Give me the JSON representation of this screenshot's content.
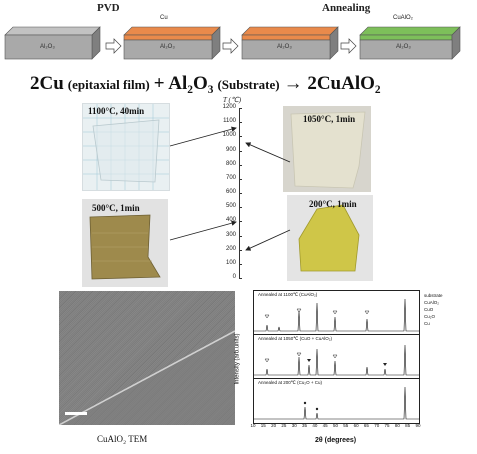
{
  "process": {
    "pvd_label": "PVD",
    "annealing_label": "Annealing",
    "boxes": [
      {
        "top_label": "",
        "body_label": "Al₂O₃",
        "top_color": "#9a9a9a"
      },
      {
        "top_label": "Cu",
        "body_label": "Al₂O₃",
        "top_color": "#e98a4b"
      },
      {
        "top_label": "",
        "body_label": "Al₂O₃",
        "top_color": "#e98a4b"
      },
      {
        "top_label": "CuAlO₂",
        "body_label": "Al₂O₃",
        "top_color": "#7dbf5a"
      }
    ]
  },
  "equation": {
    "part1": "2Cu",
    "part2": "(epitaxial film)",
    "part3": "+ Al₂O₃",
    "part4": "(Substrate)",
    "part5": "→ 2CuAlO₂"
  },
  "photos": {
    "p1": "1100°C, 40min",
    "p2": "1050°C, 1min",
    "p3": "500°C, 1min",
    "p4": "200°C, 1min"
  },
  "temp_axis": {
    "label": "T (℃)",
    "ticks": [
      "1200",
      "1100",
      "1000",
      "900",
      "800",
      "700",
      "600",
      "500",
      "400",
      "300",
      "200",
      "100",
      "0"
    ]
  },
  "tem": {
    "caption": "CuAlO₂ TEM"
  },
  "xrd": {
    "ylabel": "Intensity (arb.units)",
    "xlabel": "2θ (degrees)",
    "xticks": [
      "10",
      "15",
      "20",
      "25",
      "30",
      "35",
      "40",
      "45",
      "50",
      "55",
      "60",
      "65",
      "70",
      "75",
      "80",
      "85",
      "90"
    ],
    "panels": [
      {
        "title": "Annealed at 1100℃ (CuAlO₂)"
      },
      {
        "title": "Annealed at 1050℃ (CuO + CuAlO₂)"
      },
      {
        "title": "Annealed at 200℃ (Cu₂O + Cu)"
      }
    ],
    "legend": [
      "substrate",
      "CuAlO₂",
      "CuO",
      "Cu₂O",
      "Cu"
    ]
  },
  "colors": {
    "cu_layer": "#e98a4b",
    "cualo2_layer": "#7dbf5a",
    "substrate": "#a9a9a9"
  }
}
